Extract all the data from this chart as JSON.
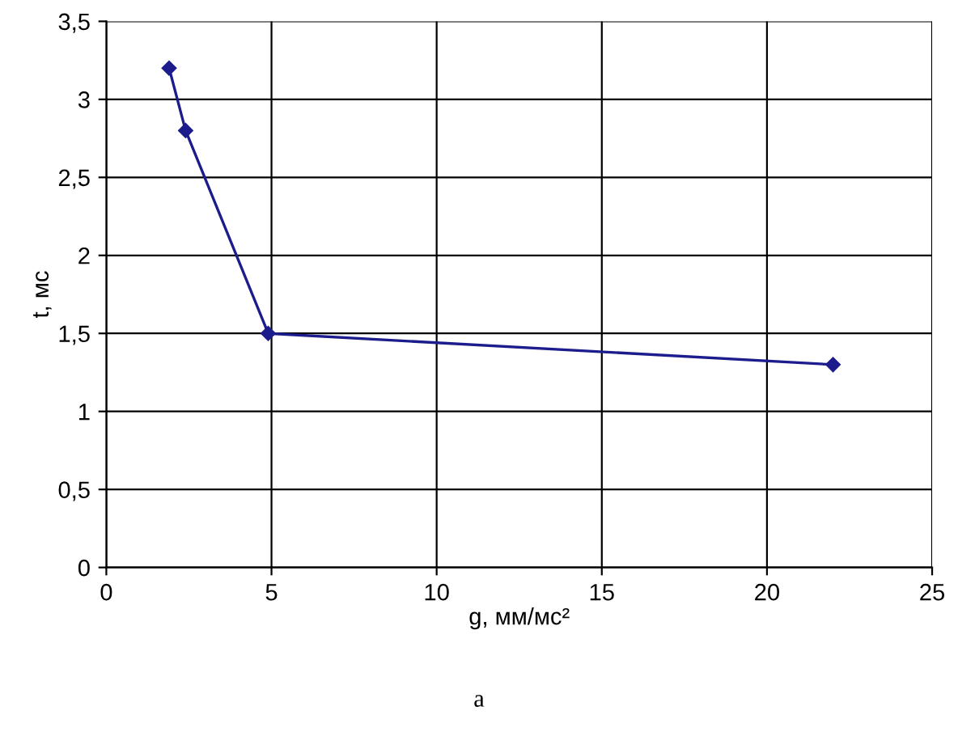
{
  "chart_data": {
    "type": "line",
    "xlabel": "g, мм/мс²",
    "ylabel": "t, мс",
    "x": [
      1.9,
      2.4,
      4.9,
      22
    ],
    "series": [
      {
        "color": "#1c1c8c",
        "values": [
          3.2,
          2.8,
          1.5,
          1.3
        ]
      }
    ],
    "xlim": [
      0,
      25
    ],
    "xticks": [
      0,
      5,
      10,
      15,
      20,
      25
    ],
    "ylim": [
      0,
      3.5
    ],
    "yticks": [
      0,
      {
        "value": 0.5,
        "label": "0,5"
      },
      1,
      {
        "value": 1.5,
        "label": "1,5"
      },
      2,
      {
        "value": 2.5,
        "label": "2,5"
      },
      3,
      {
        "value": 3.5,
        "label": "3,5"
      }
    ],
    "grid": true,
    "marker": "diamond",
    "line_style": "solid",
    "annotations": [
      "а"
    ]
  }
}
